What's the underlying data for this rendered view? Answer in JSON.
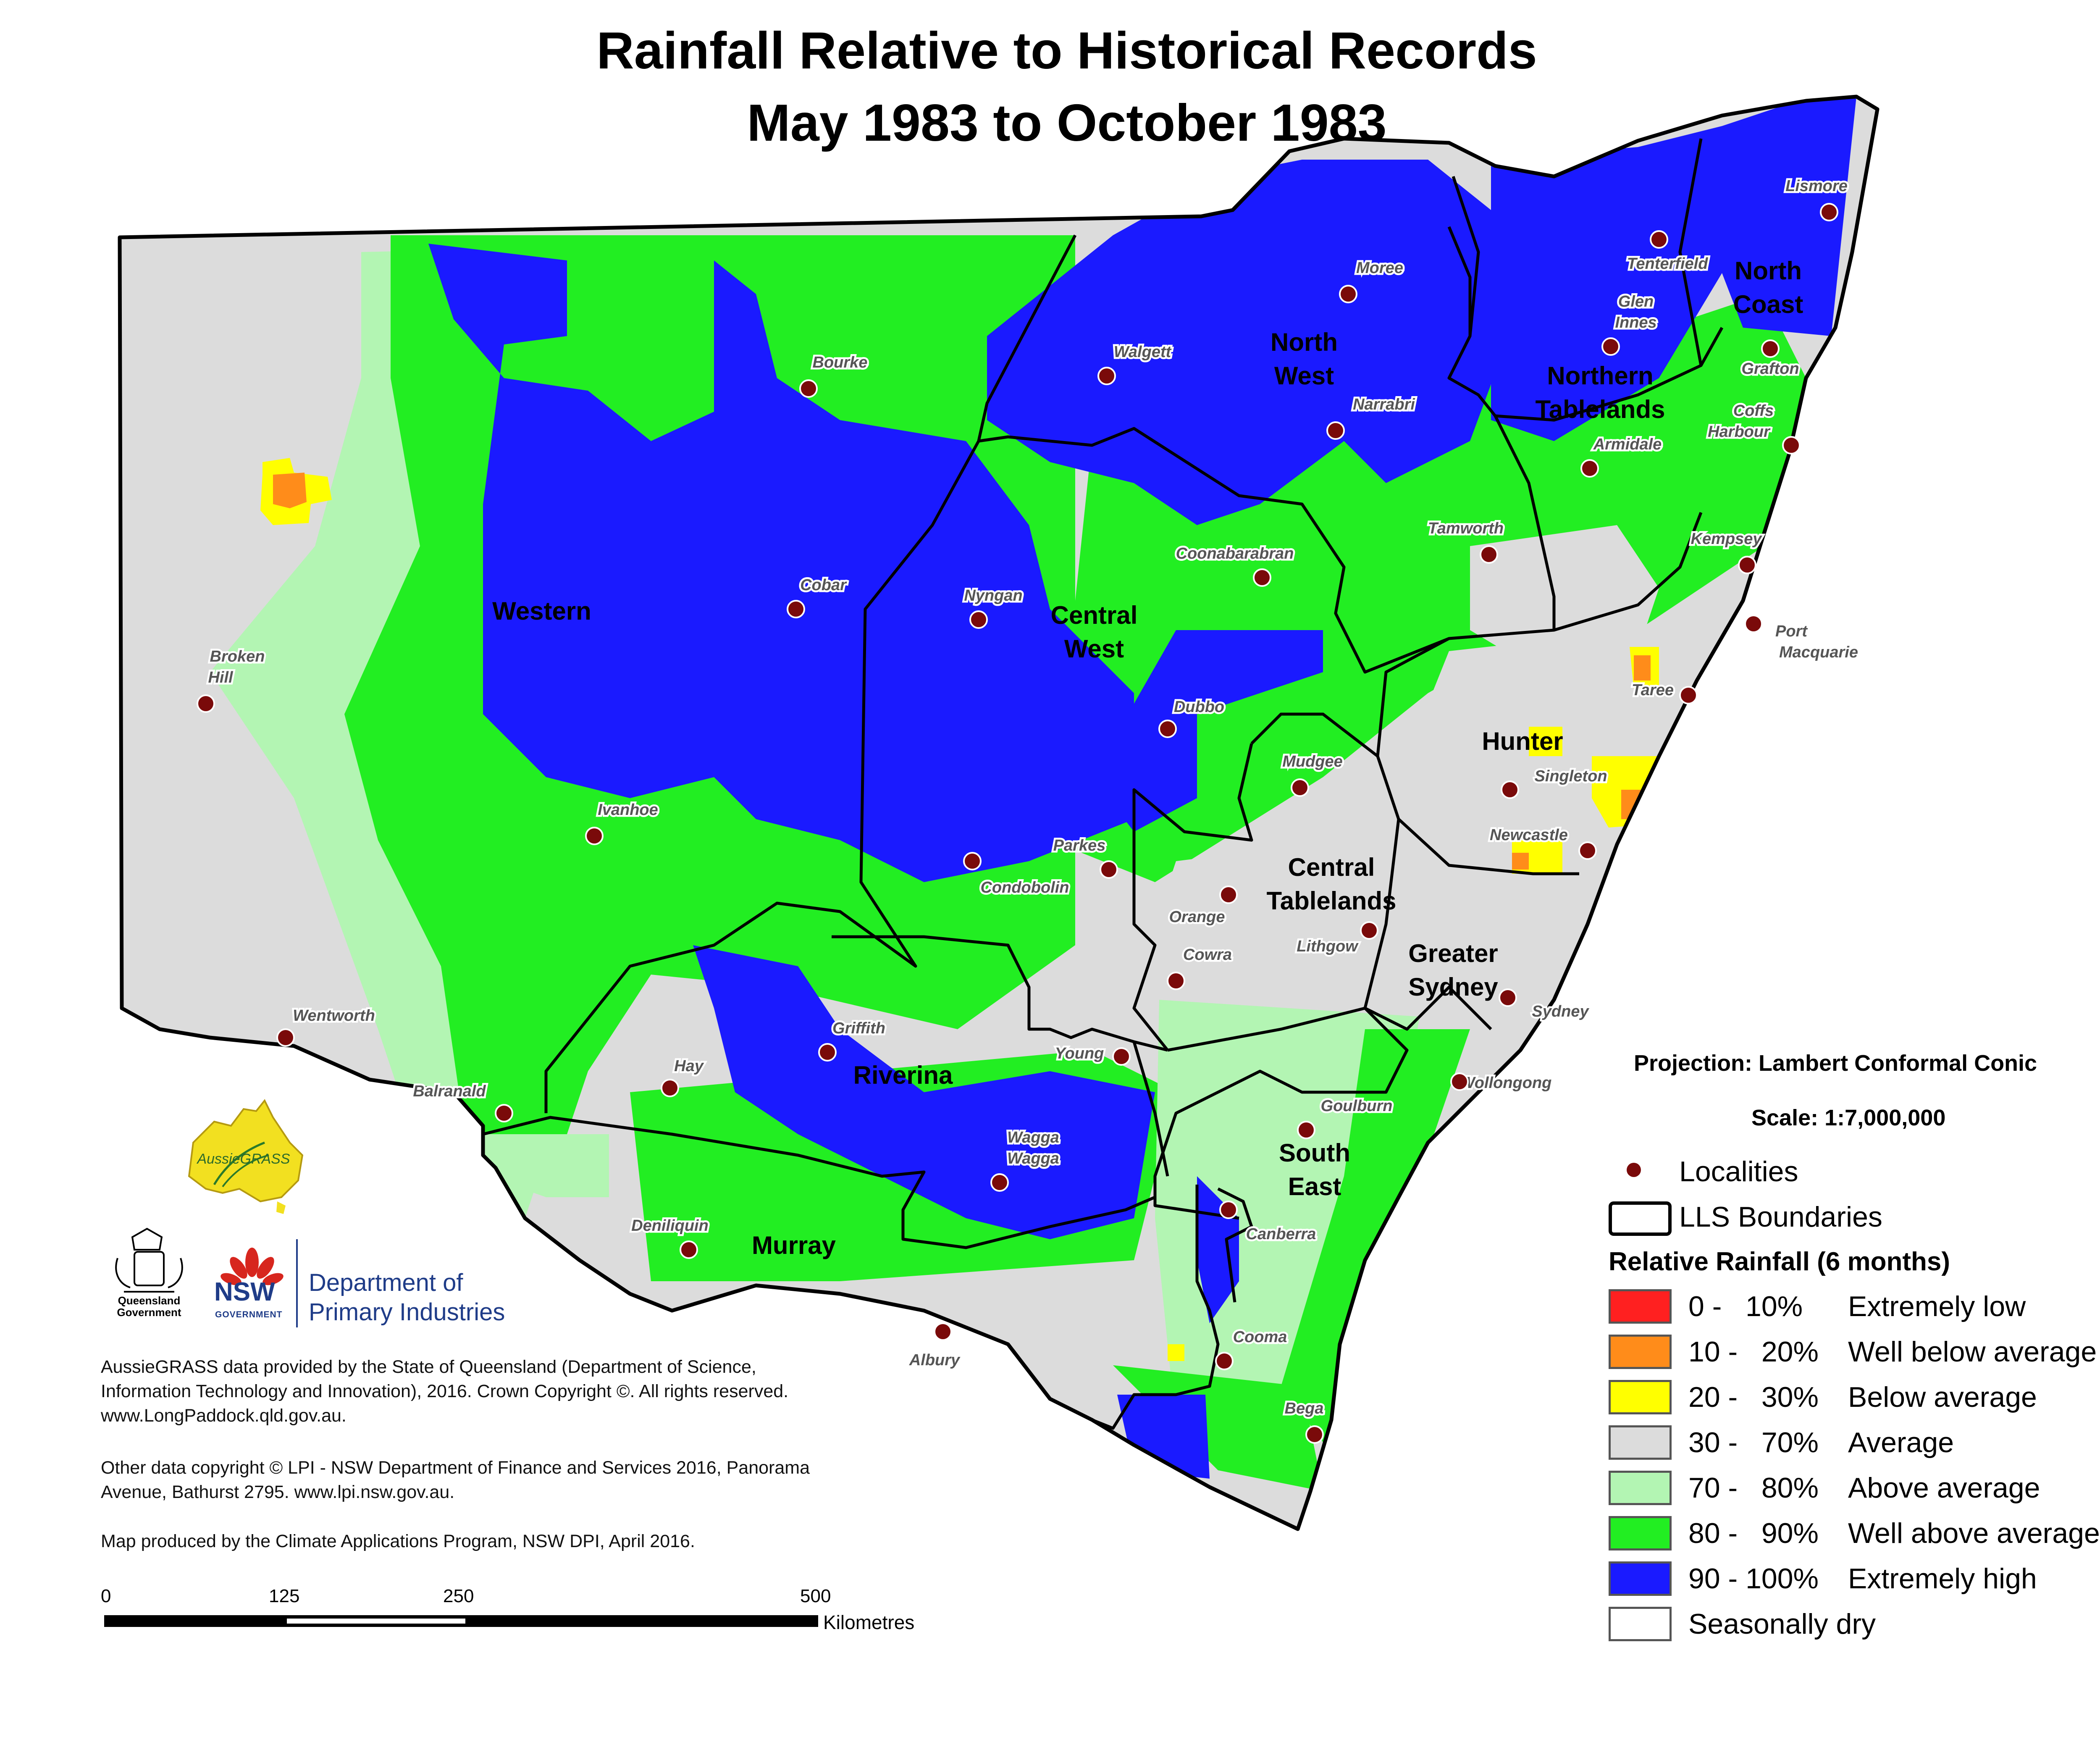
{
  "title": {
    "line1": "Rainfall Relative to Historical Records",
    "line2": "May 1983 to October 1983"
  },
  "colors": {
    "extremely_low": "#ff2020",
    "well_below": "#ff8c1a",
    "below": "#ffff00",
    "average": "#dcdcdc",
    "above": "#b3f5b3",
    "well_above": "#22ee22",
    "extremely_high": "#1a1aff",
    "seasonally_dry": "#ffffff",
    "locality": "#7a0a0a",
    "boundary": "#000000"
  },
  "regions": {
    "western": "Western",
    "north_west_1": "North",
    "north_west_2": "West",
    "northern_tablelands_1": "Northern",
    "northern_tablelands_2": "Tablelands",
    "north_coast_1": "North",
    "north_coast_2": "Coast",
    "central_west_1": "Central",
    "central_west_2": "West",
    "hunter": "Hunter",
    "central_tablelands_1": "Central",
    "central_tablelands_2": "Tablelands",
    "greater_sydney_1": "Greater",
    "greater_sydney_2": "Sydney",
    "riverina": "Riverina",
    "murray": "Murray",
    "south_east_1": "South",
    "south_east_2": "East"
  },
  "localities": {
    "lismore": "Lismore",
    "tenterfield": "Tenterfield",
    "glen_innes_1": "Glen",
    "glen_innes_2": "Innes",
    "moree": "Moree",
    "walgett": "Walgett",
    "bourke": "Bourke",
    "narrabri": "Narrabri",
    "grafton": "Grafton",
    "coffs_1": "Coffs",
    "coffs_2": "Harbour",
    "armidale": "Armidale",
    "tamworth": "Tamworth",
    "kempsey": "Kempsey",
    "port_macquarie_1": "Port",
    "port_macquarie_2": "Macquarie",
    "coonabarabran": "Coonabarabran",
    "cobar": "Cobar",
    "nyngan": "Nyngan",
    "broken_hill_1": "Broken",
    "broken_hill_2": "Hill",
    "taree": "Taree",
    "dubbo": "Dubbo",
    "mudgee": "Mudgee",
    "singleton": "Singleton",
    "ivanhoe": "Ivanhoe",
    "parkes": "Parkes",
    "newcastle": "Newcastle",
    "condobolin": "Condobolin",
    "orange": "Orange",
    "lithgow": "Lithgow",
    "cowra": "Cowra",
    "wentworth": "Wentworth",
    "sydney": "Sydney",
    "griffith": "Griffith",
    "young": "Young",
    "hay": "Hay",
    "balranald": "Balranald",
    "wollongong": "Wollongong",
    "goulburn": "Goulburn",
    "wagga_1": "Wagga",
    "wagga_2": "Wagga",
    "deniliquin": "Deniliquin",
    "canberra": "Canberra",
    "cooma": "Cooma",
    "albury": "Albury",
    "bega": "Bega"
  },
  "legend": {
    "projection": "Projection: Lambert Conformal Conic",
    "scale": "Scale: 1:7,000,000",
    "localities_label": "Localities",
    "lls_label": "LLS Boundaries",
    "heading": "Relative Rainfall (6 months)",
    "items": [
      {
        "range": "0 -   10%",
        "label": "Extremely low"
      },
      {
        "range": "10 -   20%",
        "label": "Well below average"
      },
      {
        "range": "20 -   30%",
        "label": "Below average"
      },
      {
        "range": "30 -   70%",
        "label": "Average"
      },
      {
        "range": "70 -   80%",
        "label": "Above average"
      },
      {
        "range": "80 -   90%",
        "label": "Well above average"
      },
      {
        "range": "90 - 100%",
        "label": "Extremely high"
      },
      {
        "range": "",
        "label": "Seasonally dry"
      }
    ]
  },
  "logos": {
    "aussiegrass": "AussieGRASS",
    "qld_1": "Queensland",
    "qld_2": "Government",
    "nsw": "NSW",
    "nsw_gov": "GOVERNMENT",
    "dpi_1": "Department of",
    "dpi_2": "Primary Industries"
  },
  "credits": {
    "p1": "AussieGRASS data provided by the State of Queensland (Department of Science, Information Technology and Innovation), 2016. Crown Copyright ©. All rights reserved. www.LongPaddock.qld.gov.au.",
    "p2": "Other data copyright © LPI - NSW Department of Finance and Services 2016, Panorama Avenue, Bathurst 2795. www.lpi.nsw.gov.au.",
    "p3": "Map produced by the Climate Applications Program, NSW DPI, April 2016."
  },
  "scalebar": {
    "t0": "0",
    "t1": "125",
    "t2": "250",
    "t3": "500",
    "unit": "Kilometres"
  }
}
